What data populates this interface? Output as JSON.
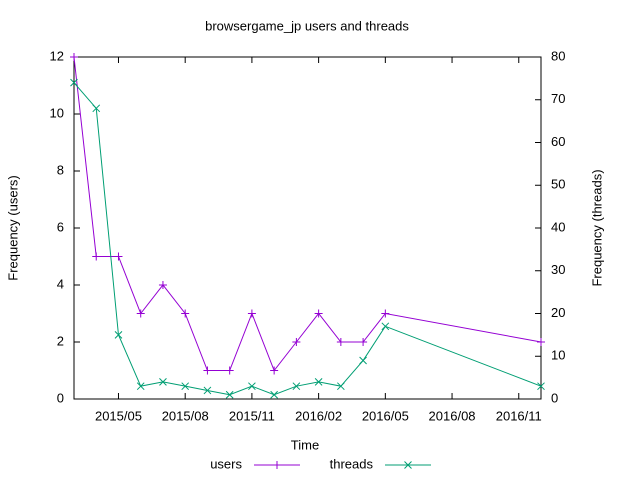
{
  "chart_data": {
    "type": "line",
    "title": "browsergame_jp users and threads",
    "xlabel": "Time",
    "ylabel": "Frequency (users)",
    "y2label": "Frequency (threads)",
    "x": [
      "2015/03",
      "2015/04",
      "2015/05",
      "2015/06",
      "2015/07",
      "2015/08",
      "2015/09",
      "2015/10",
      "2015/11",
      "2015/12",
      "2016/01",
      "2016/02",
      "2016/03",
      "2016/04",
      "2016/05",
      "2016/12"
    ],
    "xlim": [
      "2015/03",
      "2016/12"
    ],
    "xticks": [
      "2015/05",
      "2015/08",
      "2015/11",
      "2016/02",
      "2016/05",
      "2016/08",
      "2016/11"
    ],
    "ylim": [
      0,
      12
    ],
    "yticks": [
      0,
      2,
      4,
      6,
      8,
      10,
      12
    ],
    "y2lim": [
      0,
      80
    ],
    "y2ticks": [
      0,
      10,
      20,
      30,
      40,
      50,
      60,
      70,
      80
    ],
    "legend": "bottom",
    "series": [
      {
        "name": "users",
        "color": "#9400d3",
        "marker": "plus",
        "values": [
          12,
          5,
          5,
          3,
          4,
          3,
          1,
          1,
          3,
          1,
          2,
          3,
          2,
          2,
          3,
          2
        ]
      },
      {
        "name": "threads",
        "color": "#009e73",
        "marker": "cross",
        "axis": "y2",
        "values": [
          74,
          68,
          15,
          3,
          4,
          3,
          2,
          1,
          3,
          1,
          3,
          4,
          3,
          9,
          17,
          3
        ]
      }
    ]
  }
}
